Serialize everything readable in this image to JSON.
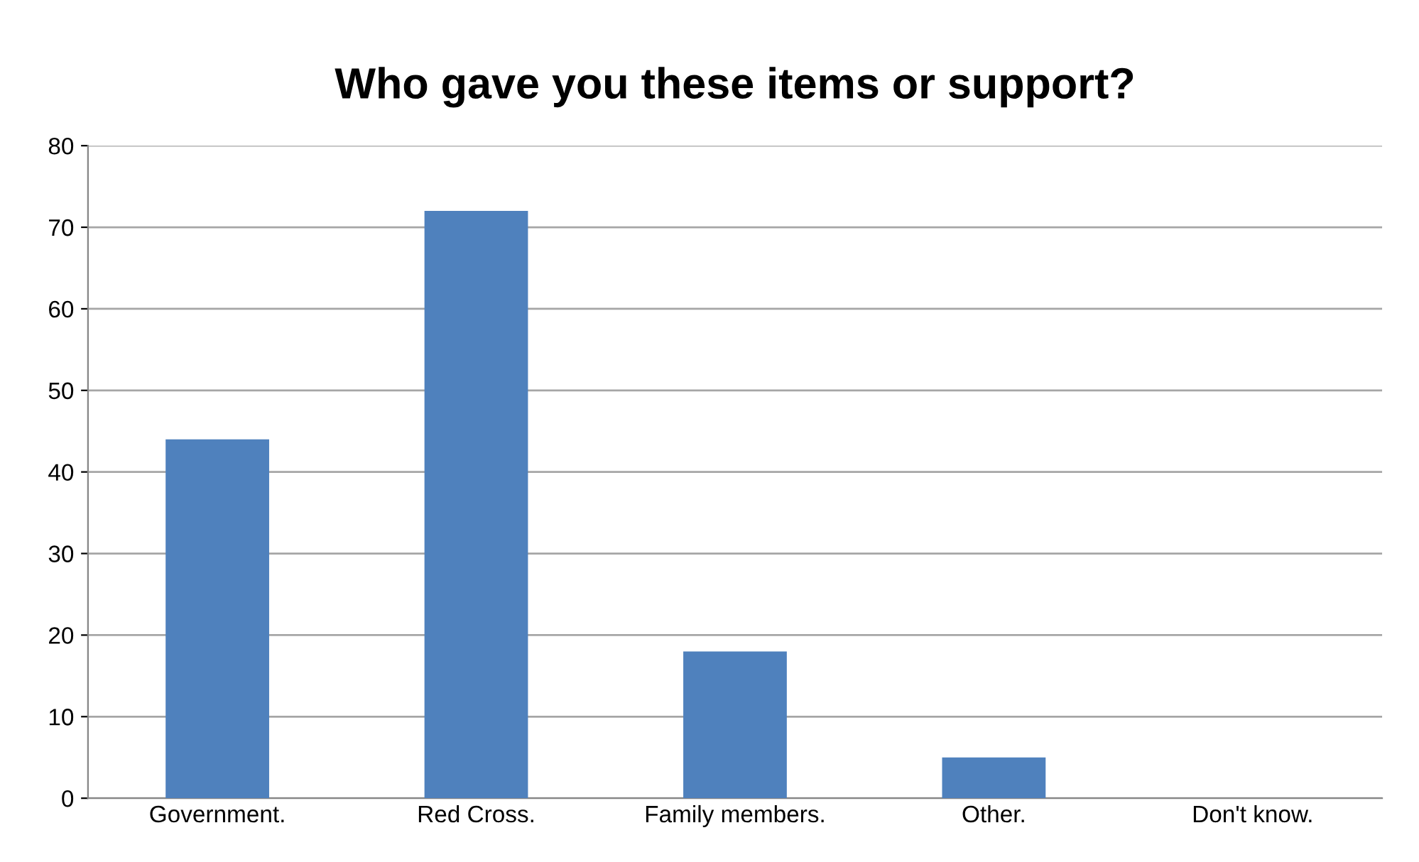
{
  "chart_data": {
    "type": "bar",
    "title": "Who gave you these items or support?",
    "categories": [
      "Government.",
      "Red Cross.",
      "Family members.",
      "Other.",
      "Don't know."
    ],
    "values": [
      44,
      72,
      18,
      5,
      0
    ],
    "color": "#4f81bd",
    "ylim": [
      0,
      80
    ],
    "yticks": [
      0,
      10,
      20,
      30,
      40,
      50,
      60,
      70,
      80
    ],
    "grid": "y",
    "legend": false
  }
}
